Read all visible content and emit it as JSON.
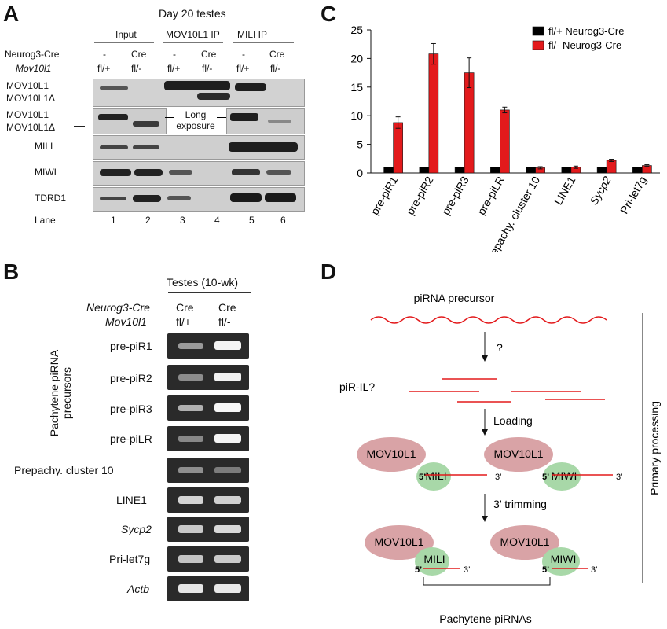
{
  "panelA": {
    "letter": "A",
    "title": "Day 20 testes",
    "groups": [
      "Input",
      "MOV10L1 IP",
      "MILI IP"
    ],
    "row_labels": {
      "neurog3": "Neurog3-Cre",
      "mov10l1": "Mov10l1"
    },
    "cre_status": [
      "-",
      "Cre",
      "-",
      "Cre",
      "-",
      "Cre"
    ],
    "genotype": [
      "fl/+",
      "fl/-",
      "fl/+",
      "fl/-",
      "fl/+",
      "fl/-"
    ],
    "blot_rows": [
      {
        "label1": "MOV10L1",
        "label2": "MOV10L1Δ"
      },
      {
        "label1": "MOV10L1",
        "label2": "MOV10L1Δ"
      },
      {
        "label1": "MILI"
      },
      {
        "label1": "MIWI"
      },
      {
        "label1": "TDRD1"
      }
    ],
    "long_exposure": "Long exposure",
    "lane_label": "Lane",
    "lanes": [
      "1",
      "2",
      "3",
      "4",
      "5",
      "6"
    ]
  },
  "panelB": {
    "letter": "B",
    "header": "Testes (10-wk)",
    "row_labels": {
      "neurog3": "Neurog3-Cre",
      "mov10l1": "Mov10l1"
    },
    "columns": [
      {
        "line1": "Cre",
        "line2": "fl/+"
      },
      {
        "line1": "Cre",
        "line2": "fl/-"
      }
    ],
    "group_label_line1": "Pachytene piRNA",
    "group_label_line2": "precursors",
    "rows": [
      {
        "label": "pre-piR1",
        "italic": false
      },
      {
        "label": "pre-piR2",
        "italic": false
      },
      {
        "label": "pre-piR3",
        "italic": false
      },
      {
        "label": "pre-piLR",
        "italic": false
      },
      {
        "label": "Prepachy. cluster 10",
        "italic": false
      },
      {
        "label": "LINE1",
        "italic": false
      },
      {
        "label": "Sycp2",
        "italic": true
      },
      {
        "label": "Pri-let7g",
        "italic": false
      },
      {
        "label": "Actb",
        "italic": true
      }
    ]
  },
  "panelC": {
    "letter": "C"
  },
  "chart_data": {
    "type": "bar",
    "categories": [
      "pre-piR1",
      "pre-piR2",
      "pre-piR3",
      "pre-piLR",
      "prepachy. cluster 10",
      "LINE1",
      "Sycp2",
      "Pri-let7g"
    ],
    "italic_categories": [
      "Sycp2"
    ],
    "series": [
      {
        "name": "fl/+ Neurog3-Cre",
        "color": "#000000",
        "values": [
          1,
          1,
          1,
          1,
          1,
          1,
          1,
          1
        ],
        "errors": [
          0,
          0,
          0,
          0,
          0,
          0,
          0,
          0
        ]
      },
      {
        "name": "fl/-  Neurog3-Cre",
        "color": "#e31a1c",
        "values": [
          8.8,
          20.8,
          17.5,
          11.0,
          0.9,
          1.0,
          2.2,
          1.3
        ],
        "errors": [
          1.0,
          1.8,
          2.6,
          0.5,
          0.2,
          0.2,
          0.2,
          0.15
        ]
      }
    ],
    "ylim": [
      0,
      25
    ],
    "yticks": [
      0,
      5,
      10,
      15,
      20,
      25
    ],
    "legend": "top-right"
  },
  "panelD": {
    "letter": "D",
    "precursor_label": "piRNA precursor",
    "question": "?",
    "pir_il": "piR-IL?",
    "loading": "Loading",
    "trimming": "3’ trimming",
    "primary_processing": "Primary processing",
    "mov10l1": "MOV10L1",
    "mili": "MILI",
    "miwi": "MIWI",
    "five_prime": "5’",
    "three_prime": "3’",
    "pachytene": "Pachytene piRNAs",
    "colors": {
      "red": "#e31a1c",
      "pink": "#d9a3a6",
      "green": "#a8d8a8"
    }
  }
}
